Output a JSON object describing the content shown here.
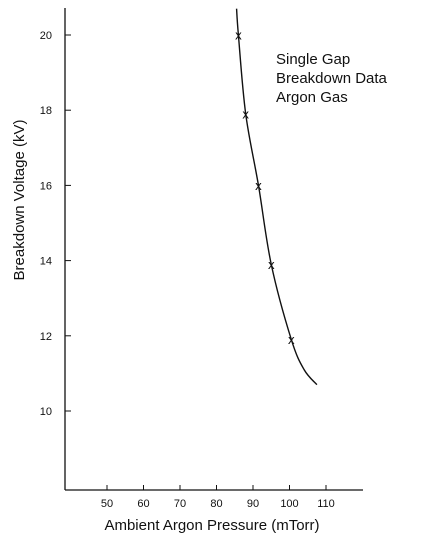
{
  "chart_data": {
    "type": "scatter",
    "title": "",
    "xlabel": "Ambient Argon Pressure (mTorr)",
    "ylabel": "Breakdown Voltage (kV)",
    "xlim": [
      40,
      120
    ],
    "ylim": [
      8,
      21
    ],
    "x_ticks": [
      50,
      60,
      70,
      80,
      90,
      100,
      110
    ],
    "y_ticks": [
      10,
      12,
      14,
      16,
      18,
      20
    ],
    "grid": false,
    "annotation": [
      "Single Gap",
      "Breakdown Data",
      "Argon Gas"
    ],
    "marker": "x",
    "series": [
      {
        "points": [
          {
            "x": 86,
            "y": 20.0
          },
          {
            "x": 88,
            "y": 17.9
          },
          {
            "x": 91.5,
            "y": 16.0
          },
          {
            "x": 95,
            "y": 13.9
          },
          {
            "x": 100.5,
            "y": 11.9
          }
        ],
        "fit_curve": [
          {
            "x": 85.5,
            "y": 20.7
          },
          {
            "x": 86,
            "y": 20.0
          },
          {
            "x": 88,
            "y": 17.9
          },
          {
            "x": 91.5,
            "y": 16.0
          },
          {
            "x": 95,
            "y": 13.9
          },
          {
            "x": 100.5,
            "y": 11.9
          },
          {
            "x": 104,
            "y": 11.1
          },
          {
            "x": 107.5,
            "y": 10.7
          }
        ]
      }
    ]
  }
}
